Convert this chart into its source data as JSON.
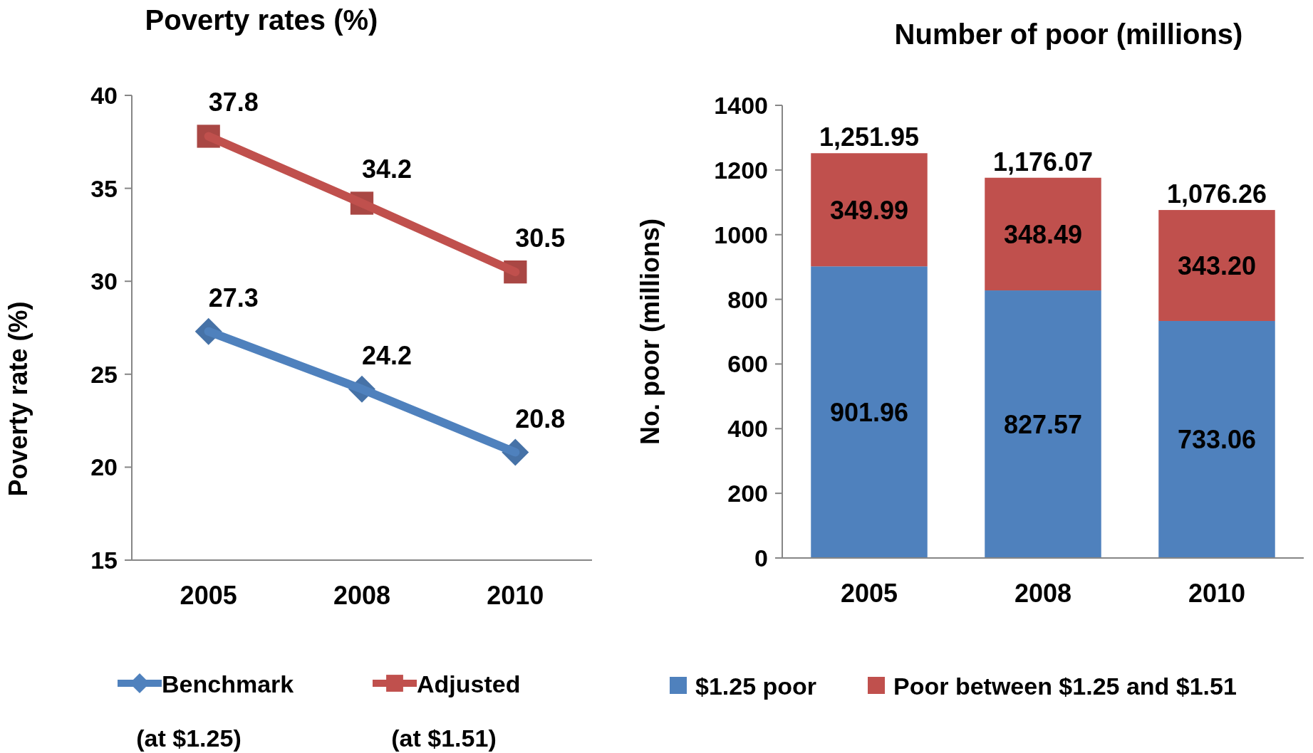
{
  "chart_data": [
    {
      "type": "line",
      "title": "Poverty rates (%)",
      "ylabel": "Poverty rate (%)",
      "categories": [
        "2005",
        "2008",
        "2010"
      ],
      "ylim": [
        15,
        40
      ],
      "yticks": [
        15,
        20,
        25,
        30,
        35,
        40
      ],
      "data_labels": true,
      "legend": "bottom",
      "series": [
        {
          "name": "Benchmark (at $1.25)",
          "color": "#4f81bd",
          "marker": "diamond",
          "values": [
            27.3,
            24.2,
            20.8
          ]
        },
        {
          "name": "Adjusted (at $1.51)",
          "color": "#c0504d",
          "marker": "square",
          "values": [
            37.8,
            34.2,
            30.5
          ]
        }
      ]
    },
    {
      "type": "bar",
      "stacked": true,
      "title": "Number of poor (millions)",
      "ylabel": "No. poor (millions)",
      "categories": [
        "2005",
        "2008",
        "2010"
      ],
      "ylim": [
        0,
        1400
      ],
      "yticks": [
        0,
        200,
        400,
        600,
        800,
        1000,
        1200,
        1400
      ],
      "legend": "bottom",
      "totals": [
        "1,251.95",
        "1,176.07",
        "1,076.26"
      ],
      "series": [
        {
          "name": "$1.25 poor",
          "color": "#4f81bd",
          "values": [
            901.96,
            827.57,
            733.06
          ],
          "value_labels": [
            "901.96",
            "827.57",
            "733.06"
          ]
        },
        {
          "name": "Poor between $1.25 and $1.51",
          "color": "#c0504d",
          "values": [
            349.99,
            348.49,
            343.2
          ],
          "value_labels": [
            "349.99",
            "348.49",
            "343.20"
          ]
        }
      ]
    }
  ]
}
